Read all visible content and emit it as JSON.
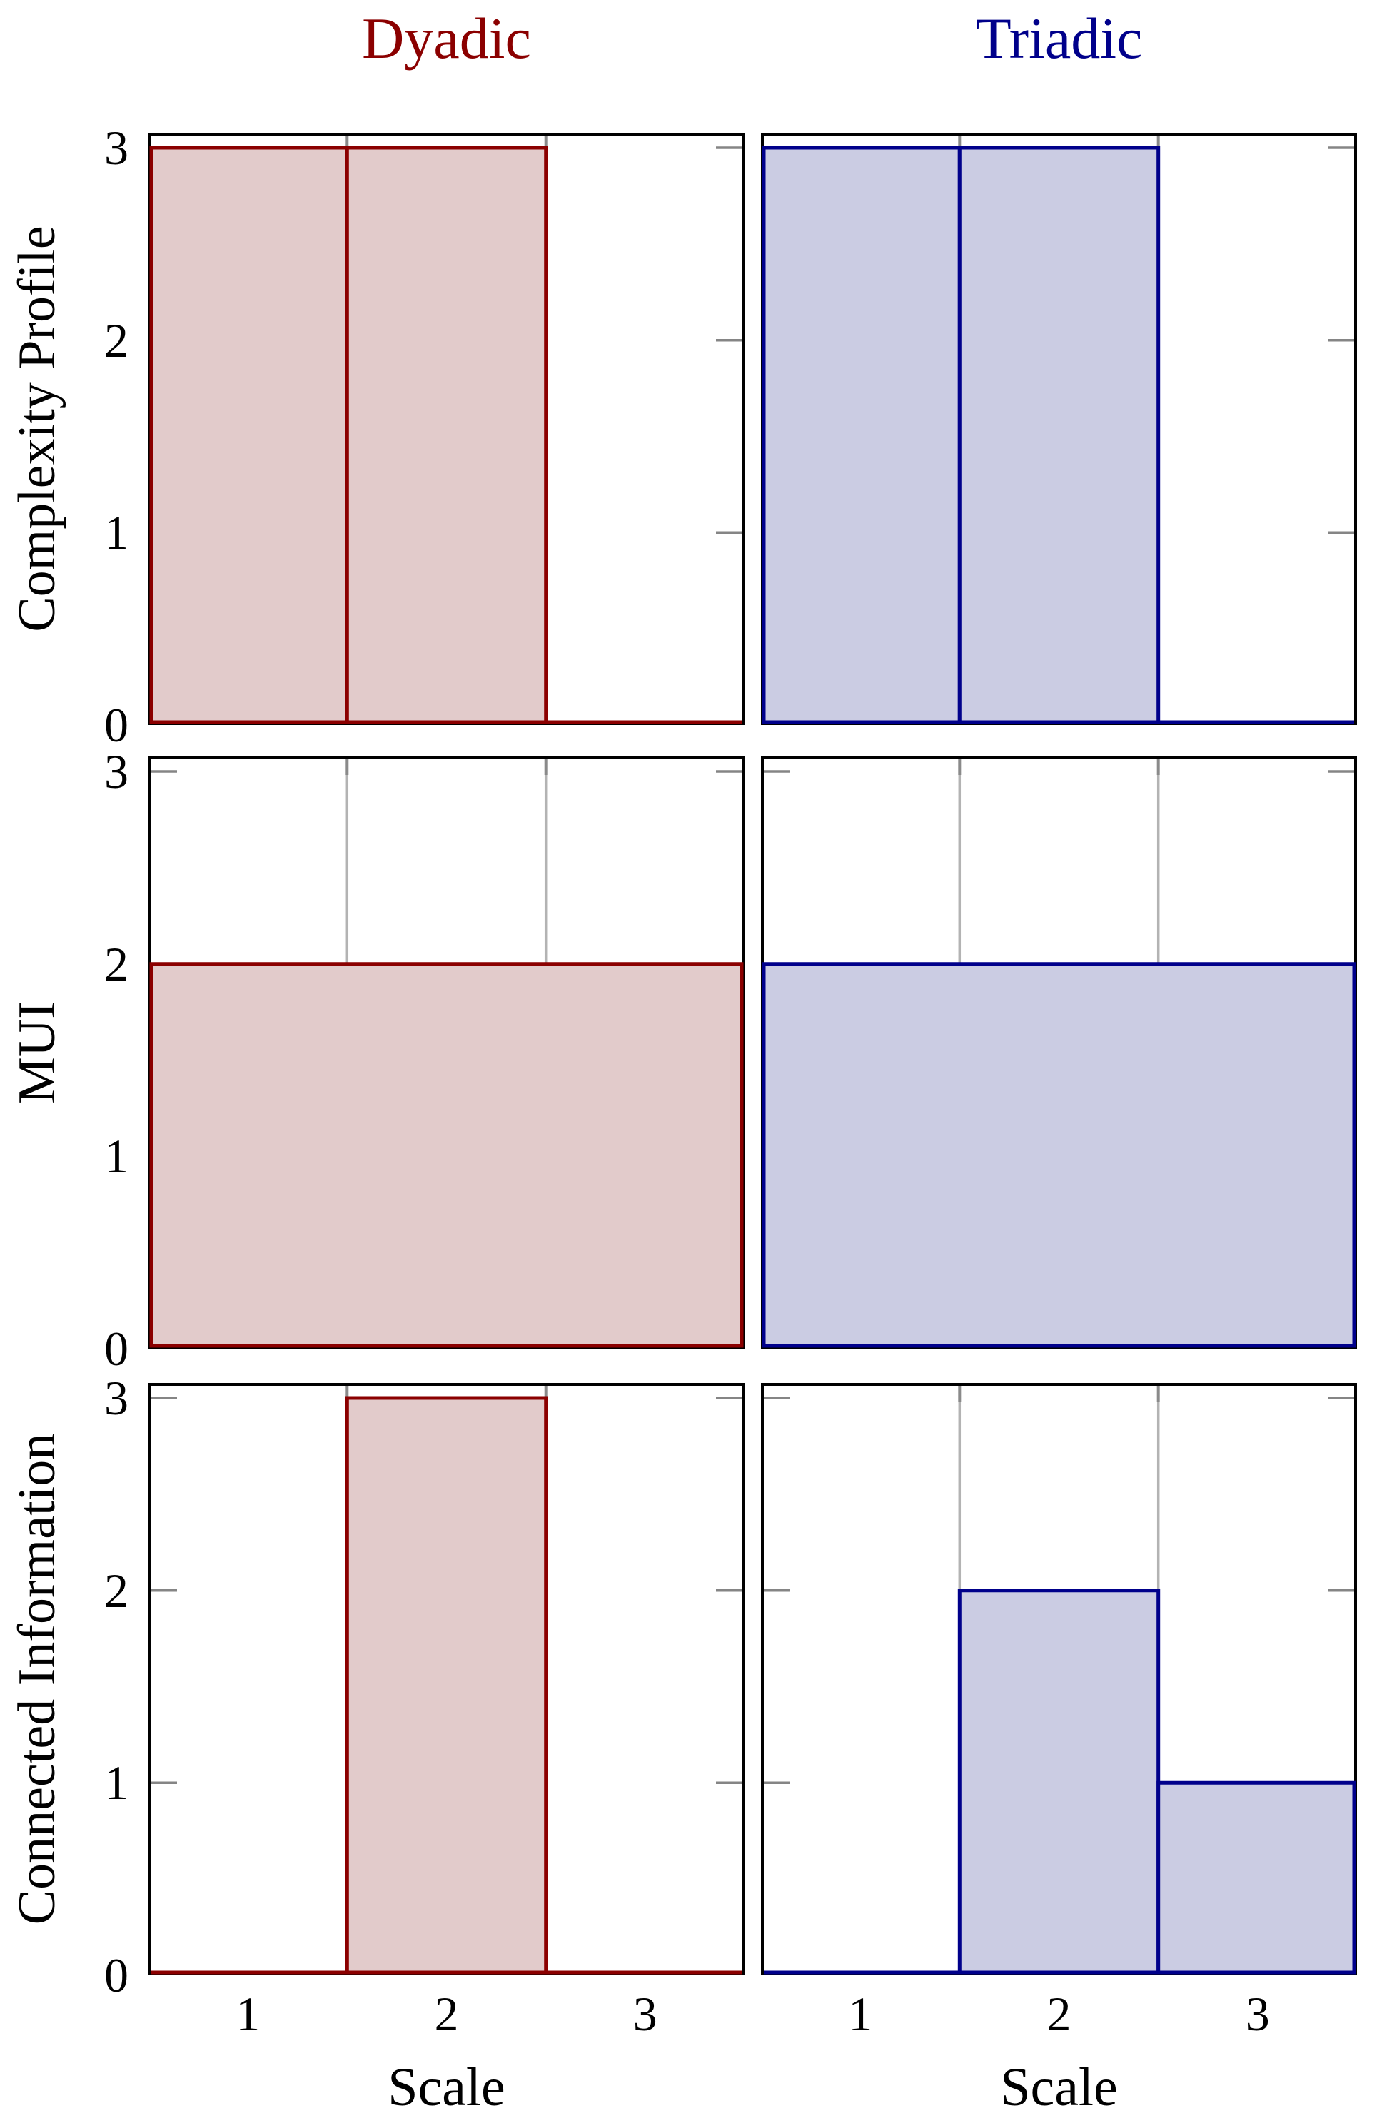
{
  "figure": {
    "titles": [
      {
        "text": "Dyadic",
        "color": "#8b0000"
      },
      {
        "text": "Triadic",
        "color": "#00008b"
      }
    ],
    "row_labels": [
      "Complexity Profile",
      "MUI",
      "Connected Information"
    ],
    "x_axis_label": "Scale",
    "y_tick_labels": [
      "3",
      "2",
      "1",
      "0"
    ],
    "x_tick_labels": [
      "1",
      "2",
      "3"
    ]
  },
  "style": {
    "frame_color": "#000000",
    "grid_color": "#b3b3b3",
    "tick_color": "#858585",
    "tick_nub_color": "#8a8a8a",
    "dyadic_line": "#8b0000",
    "dyadic_fill": "#e2cbcb",
    "triadic_line": "#00008b",
    "triadic_fill": "#cbcce3"
  },
  "chart_data": [
    {
      "id": "complexity-profile-dyadic",
      "type": "bar",
      "plot_style": "bars",
      "series": "Dyadic",
      "measure": "Complexity Profile",
      "categories": [
        1,
        2,
        3
      ],
      "values": [
        3,
        3,
        0
      ],
      "xlabel": "Scale",
      "xlim": [
        0.5,
        3.5
      ],
      "ylim": [
        0,
        3.08
      ],
      "grid_x": [
        1.5,
        2.5
      ],
      "yticks": [
        0,
        1,
        2,
        3
      ],
      "xticks": [
        1,
        2,
        3
      ],
      "line_color": "#8b0000",
      "fill_color": "#e2cbcb"
    },
    {
      "id": "complexity-profile-triadic",
      "type": "bar",
      "plot_style": "bars",
      "series": "Triadic",
      "measure": "Complexity Profile",
      "categories": [
        1,
        2,
        3
      ],
      "values": [
        3,
        3,
        0
      ],
      "xlabel": "Scale",
      "xlim": [
        0.5,
        3.5
      ],
      "ylim": [
        0,
        3.08
      ],
      "grid_x": [
        1.5,
        2.5
      ],
      "yticks": [
        0,
        1,
        2,
        3
      ],
      "xticks": [
        1,
        2,
        3
      ],
      "line_color": "#00008b",
      "fill_color": "#cbcce3"
    },
    {
      "id": "mui-dyadic",
      "type": "area",
      "plot_style": "area",
      "series": "Dyadic",
      "measure": "MUI",
      "categories": [
        1,
        2,
        3
      ],
      "values": [
        2,
        2,
        2
      ],
      "xlabel": "Scale",
      "xlim": [
        0.5,
        3.5
      ],
      "ylim": [
        0,
        3.08
      ],
      "grid_x": [
        1.5,
        2.5
      ],
      "yticks": [
        0,
        1,
        2,
        3
      ],
      "xticks": [
        1,
        2,
        3
      ],
      "line_color": "#8b0000",
      "fill_color": "#e2cbcb"
    },
    {
      "id": "mui-triadic",
      "type": "area",
      "plot_style": "area",
      "series": "Triadic",
      "measure": "MUI",
      "categories": [
        1,
        2,
        3
      ],
      "values": [
        2,
        2,
        2
      ],
      "xlabel": "Scale",
      "xlim": [
        0.5,
        3.5
      ],
      "ylim": [
        0,
        3.08
      ],
      "grid_x": [
        1.5,
        2.5
      ],
      "yticks": [
        0,
        1,
        2,
        3
      ],
      "xticks": [
        1,
        2,
        3
      ],
      "line_color": "#00008b",
      "fill_color": "#cbcce3"
    },
    {
      "id": "connected-information-dyadic",
      "type": "bar",
      "plot_style": "bars",
      "series": "Dyadic",
      "measure": "Connected Information",
      "categories": [
        1,
        2,
        3
      ],
      "values": [
        0,
        3,
        0
      ],
      "xlabel": "Scale",
      "xlim": [
        0.5,
        3.5
      ],
      "ylim": [
        0,
        3.08
      ],
      "grid_x": [
        1.5,
        2.5
      ],
      "yticks": [
        0,
        1,
        2,
        3
      ],
      "xticks": [
        1,
        2,
        3
      ],
      "line_color": "#8b0000",
      "fill_color": "#e2cbcb"
    },
    {
      "id": "connected-information-triadic",
      "type": "bar",
      "plot_style": "bars",
      "series": "Triadic",
      "measure": "Connected Information",
      "categories": [
        1,
        2,
        3
      ],
      "values": [
        0,
        2,
        1
      ],
      "xlabel": "Scale",
      "xlim": [
        0.5,
        3.5
      ],
      "ylim": [
        0,
        3.08
      ],
      "grid_x": [
        1.5,
        2.5
      ],
      "yticks": [
        0,
        1,
        2,
        3
      ],
      "xticks": [
        1,
        2,
        3
      ],
      "line_color": "#00008b",
      "fill_color": "#cbcce3"
    }
  ]
}
